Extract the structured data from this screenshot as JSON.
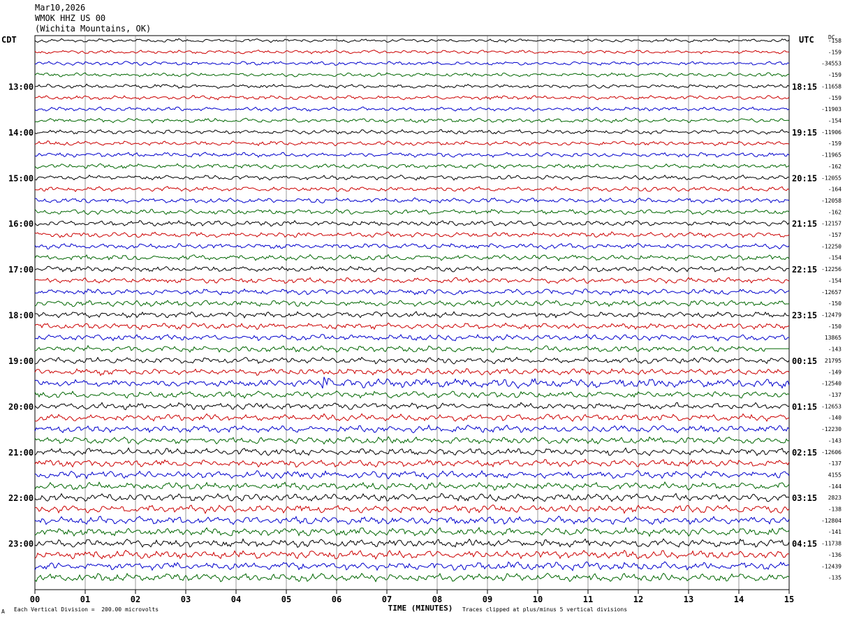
{
  "header": {
    "date": "Mar10,2026",
    "station": "WMOK HHZ US 00",
    "location": "(Wichita Mountains, OK)"
  },
  "left_zone_label": "CDT",
  "right_zone_label": "UTC",
  "dc_label": "DC",
  "footer": {
    "scale_note": "Each Vertical Division =  200.00 microvolts",
    "clip_note": "Traces clipped at plus/minus 5 vertical divisions",
    "corner_mark": "A"
  },
  "colors": {
    "trace_cycle": [
      "#000000",
      "#cc0000",
      "#0000cc",
      "#006600"
    ],
    "grid": "#000000",
    "background": "#ffffff"
  },
  "chart_data": {
    "type": "line",
    "xlabel": "TIME (MINUTES)",
    "x_ticks": [
      "00",
      "01",
      "02",
      "03",
      "04",
      "05",
      "06",
      "07",
      "08",
      "09",
      "10",
      "11",
      "12",
      "13",
      "14",
      "15"
    ],
    "xlim": [
      0,
      15
    ],
    "left_hour_labels": [
      "13:00",
      "14:00",
      "15:00",
      "16:00",
      "17:00",
      "18:00",
      "19:00",
      "20:00",
      "21:00",
      "22:00",
      "23:00"
    ],
    "right_hour_labels": [
      "18:15",
      "19:15",
      "20:15",
      "21:15",
      "22:15",
      "23:15",
      "00:15",
      "01:15",
      "02:15",
      "03:15",
      "04:15"
    ],
    "trace_count": 48,
    "first_labeled_trace": 4,
    "traces_per_hour": 4,
    "dc_offsets": [
      "-158",
      "-159",
      "-34553",
      "-159",
      "-11658",
      "-159",
      "-11903",
      "-154",
      "-11906",
      "-159",
      "-11965",
      "-162",
      "-12055",
      "-164",
      "-12058",
      "-162",
      "-12157",
      "-157",
      "-12250",
      "-154",
      "-12256",
      "-154",
      "-12657",
      "-150",
      "-12479",
      "-150",
      "13865",
      "-143",
      "21795",
      "-149",
      "-12540",
      "-137",
      "-12653",
      "-140",
      "-12230",
      "-143",
      "-12606",
      "-137",
      "4155",
      "-144",
      "2823",
      "-138",
      "-12804",
      "-141",
      "-11738",
      "-136",
      "-12439",
      "-135"
    ],
    "events": [
      {
        "trace": 30,
        "minute": 5.7,
        "amplitude": "clipped",
        "note": "large transient on blue trace near 19:30 CDT"
      },
      {
        "trace": 27,
        "minute": 14.1,
        "amplitude": "flat",
        "note": "green trace goes flat near end of 18:45 CDT row"
      }
    ]
  }
}
